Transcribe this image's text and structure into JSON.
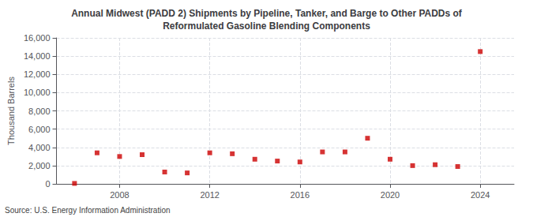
{
  "chart_data": {
    "type": "scatter",
    "title": "Annual Midwest (PADD 2) Shipments by Pipeline, Tanker, and Barge to Other PADDs of\nReformulated Gasoline Blending Components",
    "ylabel": "Thousand Barrels",
    "source": "Source: U.S. Energy Information Administration",
    "x": [
      2006,
      2007,
      2008,
      2009,
      2010,
      2011,
      2012,
      2013,
      2014,
      2015,
      2016,
      2017,
      2018,
      2019,
      2020,
      2021,
      2022,
      2023,
      2024
    ],
    "values": [
      50,
      3400,
      3000,
      3200,
      1300,
      1200,
      3400,
      3300,
      2700,
      2500,
      2400,
      3500,
      3500,
      5000,
      2700,
      2000,
      2100,
      1900,
      14500
    ],
    "color": "#cc0000",
    "marker": "square",
    "xlim": [
      2005.2,
      2025.5
    ],
    "xticks": [
      2008,
      2012,
      2016,
      2020,
      2024
    ],
    "ylim": [
      0,
      16000
    ],
    "yticks": [
      0,
      {
        "value": 2000,
        "label": "2,000"
      },
      {
        "value": 4000,
        "label": "4,000"
      },
      {
        "value": 6000,
        "label": "6,000"
      },
      {
        "value": 8000,
        "label": "8,000"
      },
      {
        "value": 10000,
        "label": "10,000"
      },
      {
        "value": 12000,
        "label": "12,000"
      },
      {
        "value": 14000,
        "label": "14,000"
      },
      {
        "value": 16000,
        "label": "16,000"
      }
    ],
    "grid": true
  }
}
